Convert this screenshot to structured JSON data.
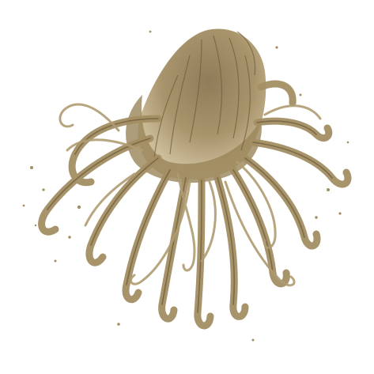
{
  "image": {
    "subject": "tentacled-creature-illustration",
    "background_color": "#ffffff",
    "ink_color": "#a48f64",
    "ink_dark": "#6e5c3c",
    "ink_light": "#c9b994"
  }
}
